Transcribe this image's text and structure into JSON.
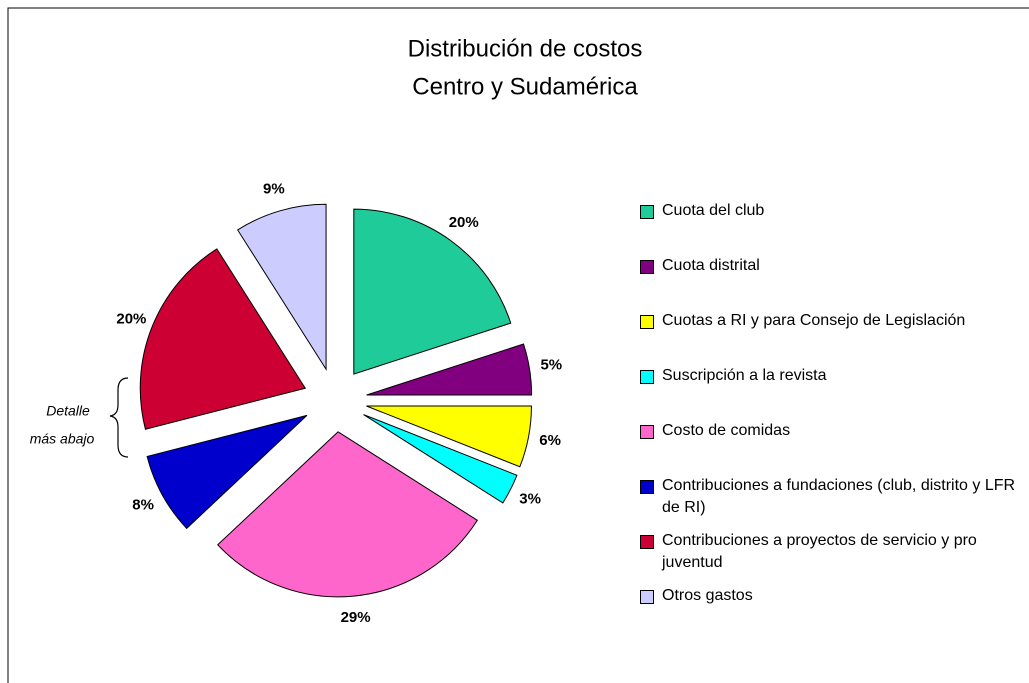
{
  "chart_data": {
    "type": "pie",
    "title": "Distribución de costos",
    "subtitle": "Centro y Sudamérica",
    "annotation": [
      "Detalle",
      "más abajo"
    ],
    "categories": [
      "Cuota del club",
      "Cuota distrital",
      "Cuotas a RI y para Consejo de Legislación",
      "Suscripción a la revista",
      "Costo de comidas",
      "Contribuciones a fundaciones (club, distrito y LFR de RI)",
      "Contribuciones a proyectos de servicio y pro juventud",
      "Otros gastos"
    ],
    "values": [
      20,
      5,
      6,
      3,
      29,
      8,
      20,
      9
    ],
    "value_labels": [
      "20%",
      "5%",
      "6%",
      "3%",
      "29%",
      "8%",
      "20%",
      "9%"
    ],
    "colors": [
      "#1fcc99",
      "#800080",
      "#ffff00",
      "#00ffff",
      "#ff66cc",
      "#0000cc",
      "#cc0033",
      "#ccccff"
    ],
    "legend": "right"
  }
}
